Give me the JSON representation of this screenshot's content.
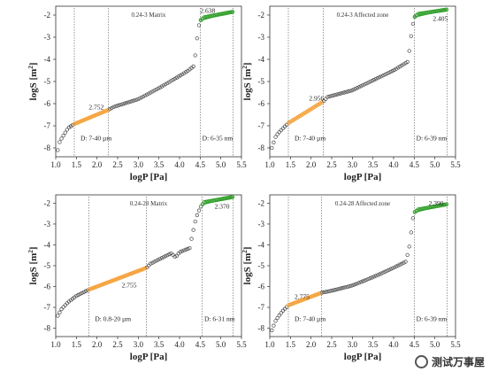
{
  "ylabel": "logS [m²]",
  "ylabel_main": "logS [m",
  "ylabel_sup": "2",
  "ylabel_end": "]",
  "xlabel": "logP [Pa]",
  "xticks": [
    "1.0",
    "1.5",
    "2.0",
    "2.5",
    "3.0",
    "3.5",
    "4.0",
    "4.5",
    "5.0",
    "5.5"
  ],
  "yticks": [
    "-2",
    "-3",
    "-4",
    "-5",
    "-6",
    "-7",
    "-8"
  ],
  "watermark": "测试万事屋",
  "colors": {
    "orange": "#f5a23a",
    "green": "#33a02c",
    "open": "#444444"
  },
  "chart_data": [
    {
      "type": "scatter",
      "title": "0.24-3 Matrix",
      "xlabel": "logP [Pa]",
      "ylabel": "logS [m²]",
      "xlim": [
        1.0,
        5.5
      ],
      "ylim": [
        -8.4,
        -1.6
      ],
      "curve": [
        [
          1.05,
          -8.1
        ],
        [
          1.1,
          -7.7
        ],
        [
          1.2,
          -7.4
        ],
        [
          1.3,
          -7.1
        ],
        [
          1.45,
          -6.92
        ],
        [
          2.28,
          -6.28
        ],
        [
          2.4,
          -6.15
        ],
        [
          3.0,
          -5.8
        ],
        [
          3.5,
          -5.3
        ],
        [
          4.0,
          -4.75
        ],
        [
          4.2,
          -4.52
        ],
        [
          4.35,
          -4.3
        ],
        [
          4.4,
          -3.5
        ],
        [
          4.45,
          -2.6
        ],
        [
          4.5,
          -2.25
        ],
        [
          4.6,
          -2.1
        ],
        [
          5.3,
          -1.85
        ]
      ],
      "fits": [
        {
          "color": "orange",
          "x": [
            1.45,
            2.28
          ],
          "label": "2.752"
        },
        {
          "color": "green",
          "x": [
            4.5,
            5.3
          ],
          "label": "2.638"
        }
      ],
      "annotations": [
        {
          "text": "2.752",
          "x": 1.8,
          "y": -6.25
        },
        {
          "text": "2.638",
          "x": 4.5,
          "y": -1.9
        },
        {
          "text": "D: 7-40 µm",
          "x": 1.6,
          "y": -7.65
        },
        {
          "text": "D: 6-35 nm",
          "x": 4.55,
          "y": -7.65
        }
      ],
      "vlines": [
        1.45,
        2.28,
        4.5,
        5.3
      ]
    },
    {
      "type": "scatter",
      "title": "0.24-3 Affected zone",
      "xlabel": "logP [Pa]",
      "ylabel": "logS [m²]",
      "xlim": [
        1.0,
        5.5
      ],
      "ylim": [
        -8.4,
        -1.6
      ],
      "curve": [
        [
          1.05,
          -8.0
        ],
        [
          1.15,
          -7.45
        ],
        [
          1.3,
          -7.15
        ],
        [
          1.45,
          -6.88
        ],
        [
          2.3,
          -5.9
        ],
        [
          2.4,
          -5.7
        ],
        [
          3.0,
          -5.4
        ],
        [
          3.5,
          -4.95
        ],
        [
          4.0,
          -4.5
        ],
        [
          4.35,
          -4.1
        ],
        [
          4.4,
          -3.3
        ],
        [
          4.45,
          -2.6
        ],
        [
          4.5,
          -2.1
        ],
        [
          4.6,
          -1.95
        ],
        [
          5.3,
          -1.75
        ]
      ],
      "fits": [
        {
          "color": "orange",
          "x": [
            1.45,
            2.3
          ],
          "label": "2.956"
        },
        {
          "color": "green",
          "x": [
            4.5,
            5.3
          ],
          "label": "2.405"
        }
      ],
      "annotations": [
        {
          "text": "2.956",
          "x": 1.95,
          "y": -5.85
        },
        {
          "text": "2.405",
          "x": 4.95,
          "y": -2.25
        },
        {
          "text": "D: 7-40 µm",
          "x": 1.6,
          "y": -7.65
        },
        {
          "text": "D: 6-39 nm",
          "x": 4.55,
          "y": -7.65
        }
      ],
      "vlines": [
        1.45,
        2.3,
        4.5,
        5.3
      ]
    },
    {
      "type": "scatter",
      "title": "0.24-28 Matrix",
      "xlabel": "logP [Pa]",
      "ylabel": "logS [m²]",
      "xlim": [
        1.0,
        5.5
      ],
      "ylim": [
        -8.4,
        -1.6
      ],
      "curve": [
        [
          1.05,
          -7.4
        ],
        [
          1.15,
          -7.05
        ],
        [
          1.3,
          -6.75
        ],
        [
          1.5,
          -6.45
        ],
        [
          1.8,
          -6.15
        ],
        [
          3.2,
          -5.1
        ],
        [
          3.3,
          -4.9
        ],
        [
          3.6,
          -4.6
        ],
        [
          3.8,
          -4.4
        ],
        [
          3.9,
          -4.6
        ],
        [
          4.0,
          -4.35
        ],
        [
          4.25,
          -4.15
        ],
        [
          4.3,
          -3.6
        ],
        [
          4.4,
          -2.7
        ],
        [
          4.5,
          -2.2
        ],
        [
          4.6,
          -1.95
        ],
        [
          5.3,
          -1.7
        ]
      ],
      "fits": [
        {
          "color": "orange",
          "x": [
            1.8,
            3.2
          ],
          "label": "2.755"
        },
        {
          "color": "green",
          "x": [
            4.55,
            5.3
          ],
          "label": "2.370"
        }
      ],
      "annotations": [
        {
          "text": "2.755",
          "x": 2.6,
          "y": -6.05
        },
        {
          "text": "2.370",
          "x": 4.85,
          "y": -2.25
        },
        {
          "text": "D: 0.8-20 µm",
          "x": 1.95,
          "y": -7.65
        },
        {
          "text": "D: 6-31 nm",
          "x": 4.6,
          "y": -7.65
        }
      ],
      "vlines": [
        1.8,
        3.2,
        4.55,
        5.3
      ]
    },
    {
      "type": "scatter",
      "title": "0.24-28 Affected zone",
      "xlabel": "logP [Pa]",
      "ylabel": "logS [m²]",
      "xlim": [
        1.0,
        5.5
      ],
      "ylim": [
        -8.4,
        -1.6
      ],
      "curve": [
        [
          1.05,
          -8.1
        ],
        [
          1.15,
          -7.6
        ],
        [
          1.3,
          -7.2
        ],
        [
          1.45,
          -6.9
        ],
        [
          2.25,
          -6.3
        ],
        [
          2.5,
          -6.2
        ],
        [
          3.0,
          -5.95
        ],
        [
          3.5,
          -5.55
        ],
        [
          4.0,
          -5.1
        ],
        [
          4.3,
          -4.8
        ],
        [
          4.4,
          -3.9
        ],
        [
          4.45,
          -2.9
        ],
        [
          4.5,
          -2.45
        ],
        [
          4.6,
          -2.3
        ],
        [
          5.3,
          -2.05
        ]
      ],
      "fits": [
        {
          "color": "orange",
          "x": [
            1.45,
            2.25
          ],
          "label": "2.775"
        },
        {
          "color": "green",
          "x": [
            4.5,
            5.3
          ],
          "label": "2.390"
        }
      ],
      "annotations": [
        {
          "text": "2.775",
          "x": 1.6,
          "y": -6.6
        },
        {
          "text": "2.390",
          "x": 4.85,
          "y": -2.1
        },
        {
          "text": "D: 7-40 µm",
          "x": 1.6,
          "y": -7.65
        },
        {
          "text": "D: 6-39 nm",
          "x": 4.55,
          "y": -7.65
        }
      ],
      "vlines": [
        1.45,
        2.25,
        4.5,
        5.3
      ]
    }
  ]
}
